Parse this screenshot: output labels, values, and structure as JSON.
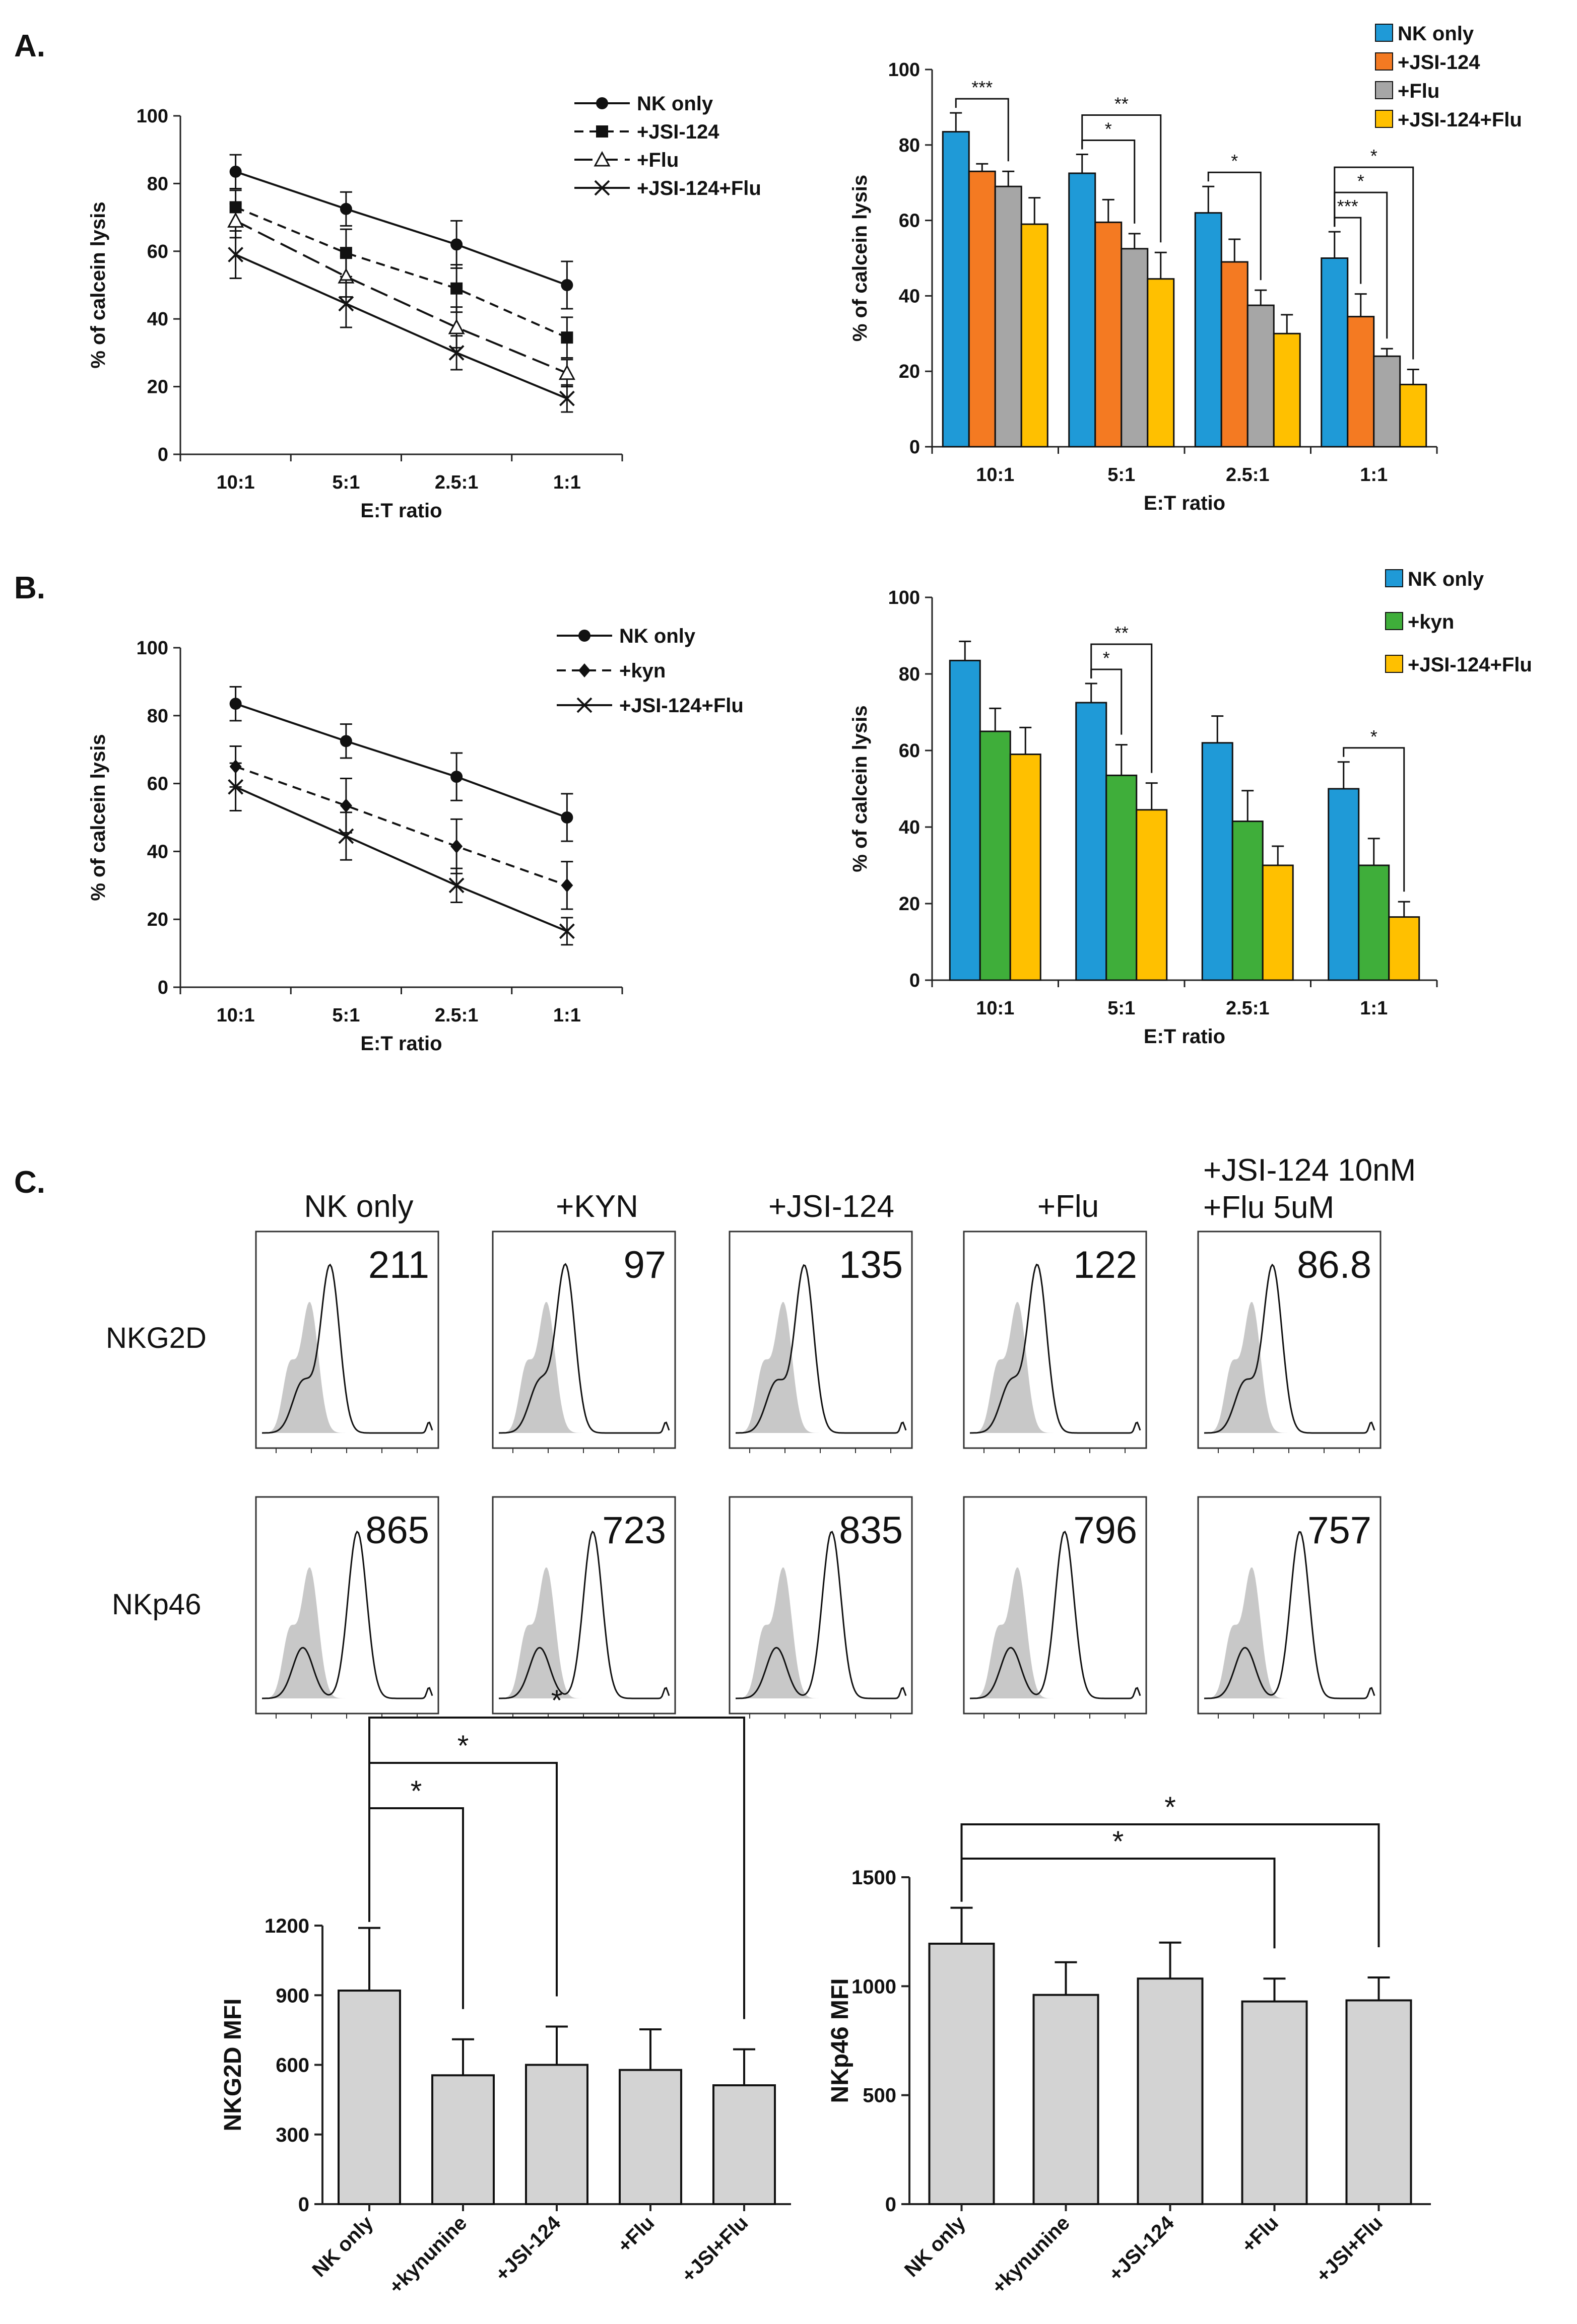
{
  "panels": {
    "a": "A.",
    "b": "B.",
    "c": "C."
  },
  "colors": {
    "nk_only": "#1f9ad7",
    "jsi124": "#f47a22",
    "flu": "#a6a6a6",
    "combo": "#ffc000",
    "kyn": "#3fae3a",
    "mfi_bar": "#d3d3d3"
  },
  "chart_data": [
    {
      "id": "A-line",
      "type": "line",
      "title": "",
      "categories": [
        "10:1",
        "5:1",
        "2.5:1",
        "1:1"
      ],
      "xlabel": "E:T ratio",
      "ylabel": "% of calcein lysis",
      "ylim": [
        0,
        100
      ],
      "yticks": [
        0,
        20,
        40,
        60,
        80,
        100
      ],
      "legend_position": "top-right",
      "series": [
        {
          "name": "NK only",
          "values": [
            83.5,
            72.5,
            62,
            50
          ],
          "errors": [
            5,
            5,
            7,
            7
          ],
          "marker": "circle",
          "dash": "solid"
        },
        {
          "name": "+JSI-124",
          "values": [
            73,
            59.5,
            49,
            34.5
          ],
          "errors": [
            5,
            7,
            7,
            6
          ],
          "marker": "square",
          "dash": "short"
        },
        {
          "name": "+Flu",
          "values": [
            69,
            52.5,
            37.5,
            24
          ],
          "errors": [
            5,
            6,
            6,
            4
          ],
          "marker": "triangle",
          "dash": "long"
        },
        {
          "name": "+JSI-124+Flu",
          "values": [
            59,
            44.5,
            30,
            16.5
          ],
          "errors": [
            7,
            7,
            5,
            4
          ],
          "marker": "x",
          "dash": "solid"
        }
      ]
    },
    {
      "id": "A-bar",
      "type": "bar",
      "title": "",
      "categories": [
        "10:1",
        "5:1",
        "2.5:1",
        "1:1"
      ],
      "xlabel": "E:T ratio",
      "ylabel": "% of calcein lysis",
      "ylim": [
        0,
        100
      ],
      "yticks": [
        0,
        20,
        40,
        60,
        80,
        100
      ],
      "legend_position": "top-right",
      "series": [
        {
          "name": "NK only",
          "color_key": "nk_only",
          "values": [
            83.5,
            72.5,
            62,
            50
          ],
          "errors": [
            5,
            5,
            7,
            7
          ]
        },
        {
          "name": "+JSI-124",
          "color_key": "jsi124",
          "values": [
            73,
            59.5,
            49,
            34.5
          ],
          "errors": [
            2,
            6,
            6,
            6
          ]
        },
        {
          "name": "+Flu",
          "color_key": "flu",
          "values": [
            69,
            52.5,
            37.5,
            24
          ],
          "errors": [
            4,
            4,
            4,
            2
          ]
        },
        {
          "name": "+JSI-124+Flu",
          "color_key": "combo",
          "values": [
            59,
            44.5,
            30,
            16.5
          ],
          "errors": [
            7,
            7,
            5,
            4
          ]
        }
      ],
      "significance": [
        {
          "category": 0,
          "from": 0,
          "to": 2,
          "label": "***",
          "level": 0
        },
        {
          "category": 1,
          "from": 0,
          "to": 2,
          "label": "*",
          "level": 0
        },
        {
          "category": 1,
          "from": 0,
          "to": 3,
          "label": "**",
          "level": 1
        },
        {
          "category": 2,
          "from": 0,
          "to": 2,
          "label": "*",
          "level": 0
        },
        {
          "category": 3,
          "from": 0,
          "to": 1,
          "label": "***",
          "level": 0
        },
        {
          "category": 3,
          "from": 0,
          "to": 2,
          "label": "*",
          "level": 1
        },
        {
          "category": 3,
          "from": 0,
          "to": 3,
          "label": "*",
          "level": 2
        }
      ]
    },
    {
      "id": "B-line",
      "type": "line",
      "title": "",
      "categories": [
        "10:1",
        "5:1",
        "2.5:1",
        "1:1"
      ],
      "xlabel": "E:T ratio",
      "ylabel": "% of calcein lysis",
      "ylim": [
        0,
        100
      ],
      "yticks": [
        0,
        20,
        40,
        60,
        80,
        100
      ],
      "legend_position": "top-right",
      "series": [
        {
          "name": "NK only",
          "values": [
            83.5,
            72.5,
            62,
            50
          ],
          "errors": [
            5,
            5,
            7,
            7
          ],
          "marker": "circle",
          "dash": "solid"
        },
        {
          "name": "+kyn",
          "values": [
            65,
            53.5,
            41.5,
            30
          ],
          "errors": [
            6,
            8,
            8,
            7
          ],
          "marker": "diamond",
          "dash": "short"
        },
        {
          "name": "+JSI-124+Flu",
          "values": [
            59,
            44.5,
            30,
            16.5
          ],
          "errors": [
            7,
            7,
            5,
            4
          ],
          "marker": "x",
          "dash": "solid"
        }
      ]
    },
    {
      "id": "B-bar",
      "type": "bar",
      "title": "",
      "categories": [
        "10:1",
        "5:1",
        "2.5:1",
        "1:1"
      ],
      "xlabel": "E:T ratio",
      "ylabel": "% of calcein lysis",
      "ylim": [
        0,
        100
      ],
      "yticks": [
        0,
        20,
        40,
        60,
        80,
        100
      ],
      "legend_position": "top-right",
      "series": [
        {
          "name": "NK only",
          "color_key": "nk_only",
          "values": [
            83.5,
            72.5,
            62,
            50
          ],
          "errors": [
            5,
            5,
            7,
            7
          ]
        },
        {
          "name": "+kyn",
          "color_key": "kyn",
          "values": [
            65,
            53.5,
            41.5,
            30
          ],
          "errors": [
            6,
            8,
            8,
            7
          ]
        },
        {
          "name": "+JSI-124+Flu",
          "color_key": "combo",
          "values": [
            59,
            44.5,
            30,
            16.5
          ],
          "errors": [
            7,
            7,
            5,
            4
          ]
        }
      ],
      "significance": [
        {
          "category": 1,
          "from": 0,
          "to": 1,
          "label": "*",
          "level": 0
        },
        {
          "category": 1,
          "from": 0,
          "to": 2,
          "label": "**",
          "level": 1
        },
        {
          "category": 3,
          "from": 0,
          "to": 2,
          "label": "*",
          "level": 0
        }
      ]
    },
    {
      "id": "C-nkg2d-mfi",
      "type": "bar",
      "title": "",
      "categories": [
        "NK only",
        "+kynunine",
        "+JSI-124",
        "+Flu",
        "+JSI+Flu"
      ],
      "values": [
        920,
        555,
        600,
        578,
        512
      ],
      "errors": [
        270,
        155,
        165,
        175,
        155
      ],
      "xlabel": "",
      "ylabel": "NKG2D MFI",
      "ylim": [
        0,
        1200
      ],
      "yticks": [
        0,
        300,
        600,
        900,
        1200
      ],
      "significance": [
        {
          "from": 0,
          "to": 1,
          "label": "*",
          "level": 0
        },
        {
          "from": 0,
          "to": 2,
          "label": "*",
          "level": 1
        },
        {
          "from": 0,
          "to": 4,
          "label": "*",
          "level": 2
        }
      ]
    },
    {
      "id": "C-nkp46-mfi",
      "type": "bar",
      "title": "",
      "categories": [
        "NK only",
        "+kynunine",
        "+JSI-124",
        "+Flu",
        "+JSI+Flu"
      ],
      "values": [
        1195,
        960,
        1035,
        930,
        935
      ],
      "errors": [
        165,
        150,
        165,
        105,
        105
      ],
      "xlabel": "",
      "ylabel": "NKp46 MFI",
      "ylim": [
        0,
        1500
      ],
      "yticks": [
        0,
        500,
        1000,
        1500
      ],
      "significance": [
        {
          "from": 0,
          "to": 3,
          "label": "*",
          "level": 0
        },
        {
          "from": 0,
          "to": 4,
          "label": "*",
          "level": 1
        }
      ]
    }
  ],
  "flow": {
    "columns": [
      "NK only",
      "+KYN",
      "+JSI-124",
      "+Flu"
    ],
    "column5_line1": "+JSI-124 10nM",
    "column5_line2": "+Flu 5uM",
    "rows": [
      {
        "label": "NKG2D",
        "values": [
          "211",
          "97",
          "135",
          "122",
          "86.8"
        ]
      },
      {
        "label": "NKp46",
        "values": [
          "865",
          "723",
          "835",
          "796",
          "757"
        ]
      }
    ]
  }
}
